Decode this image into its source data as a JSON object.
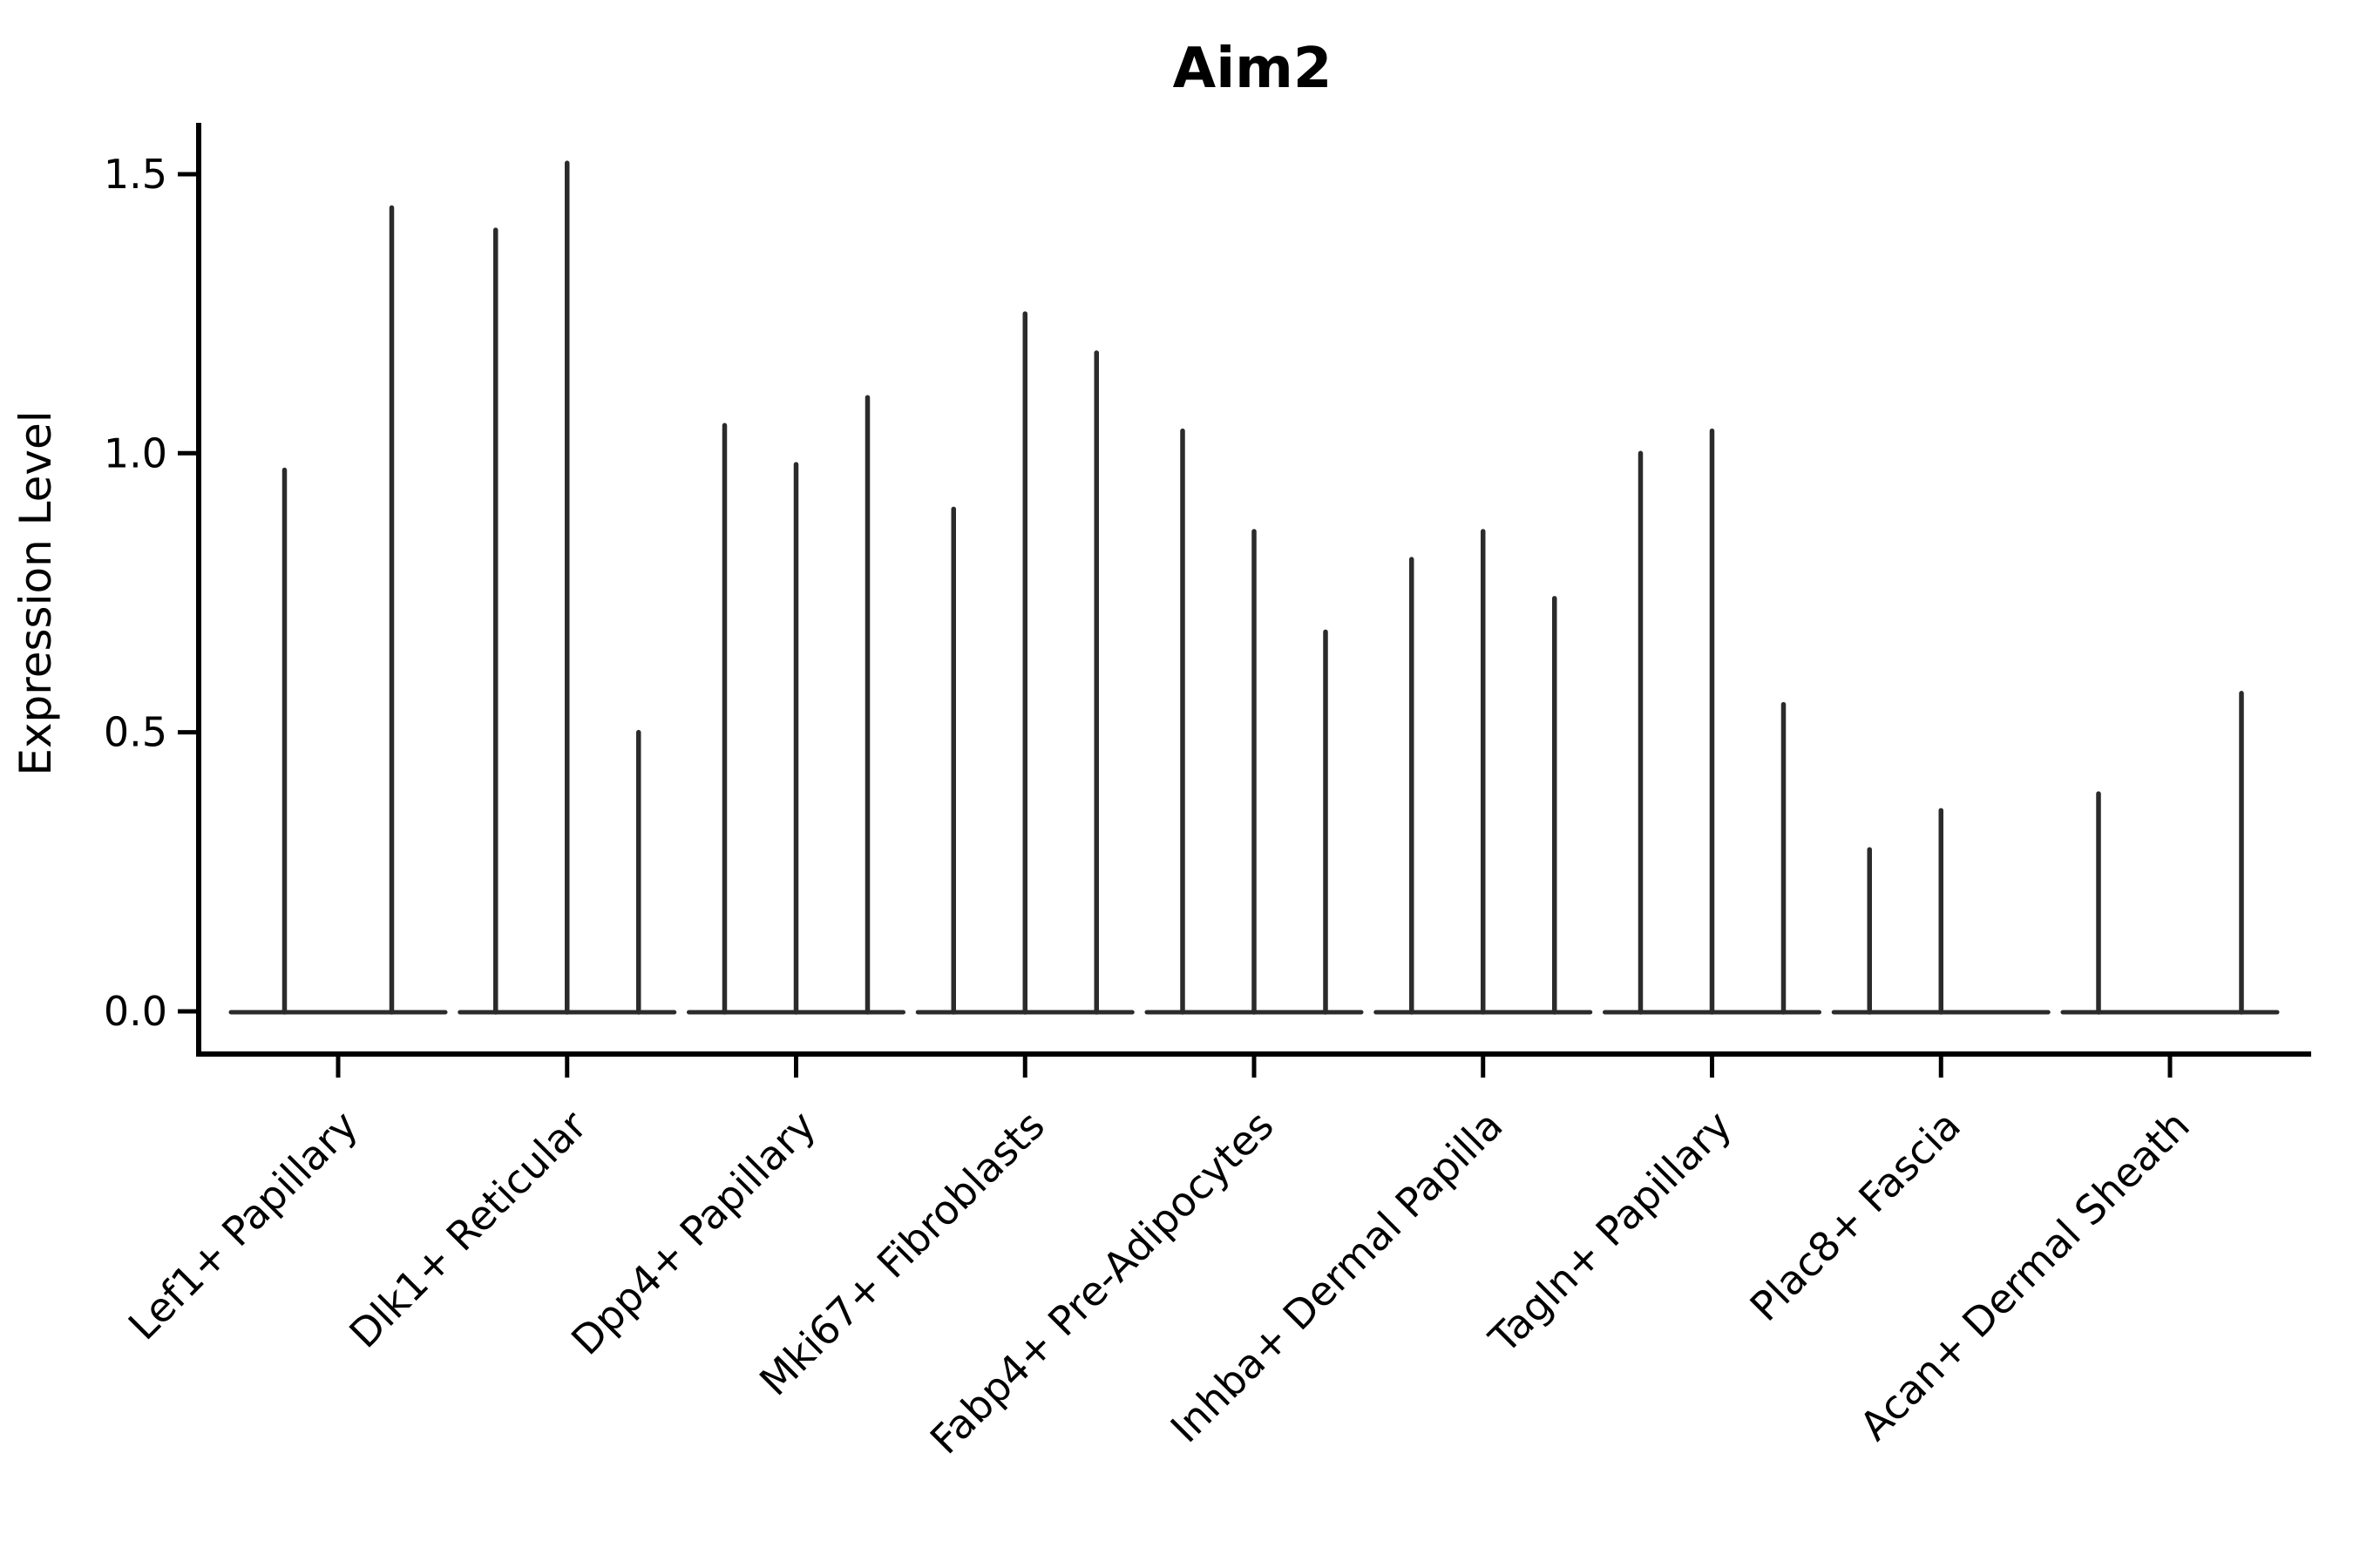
{
  "title": "Aim2",
  "colors": {
    "violin_stroke": "#2b2b2b",
    "axis": "#000000",
    "background": "#ffffff",
    "text": "#000000"
  },
  "chart_data": {
    "type": "violin",
    "title": "Aim2",
    "xlabel": "",
    "ylabel": "Expression Level",
    "ylim": [
      0,
      1.55
    ],
    "y_ticks": [
      0.0,
      0.5,
      1.0,
      1.5
    ],
    "y_tick_labels": [
      "0.0",
      "0.5",
      "1.0",
      "1.5"
    ],
    "grid": "off",
    "legend": "none",
    "x_tick_rotation_deg": 45,
    "categories": [
      "Lef1+ Papillary",
      "Dlk1+ Reticular",
      "Dpp4+ Papillary",
      "Mki67+ Fibroblasts",
      "Fabp4+ Pre-Adipocytes",
      "Inhba+ Dermal Papilla",
      "Tagln+ Papillary",
      "Plac8+ Fascia",
      "Acan+ Dermal Sheath"
    ],
    "description": "Each category holds 2-3 split violins; nearly all density mass sits at 0 (flat horizontal base) with a thin spike rising to the maximum expression value. 0 means that violin is entirely flat.",
    "violin_max_values": [
      [
        0.97,
        1.44
      ],
      [
        1.4,
        1.52,
        0.5
      ],
      [
        1.05,
        0.98,
        1.1
      ],
      [
        0.9,
        1.25,
        1.18
      ],
      [
        1.04,
        0.86,
        0.68
      ],
      [
        0.81,
        0.86,
        0.74
      ],
      [
        1.0,
        1.04,
        0.55
      ],
      [
        0.29,
        0.36,
        0
      ],
      [
        0.39,
        0,
        0.57
      ]
    ]
  }
}
